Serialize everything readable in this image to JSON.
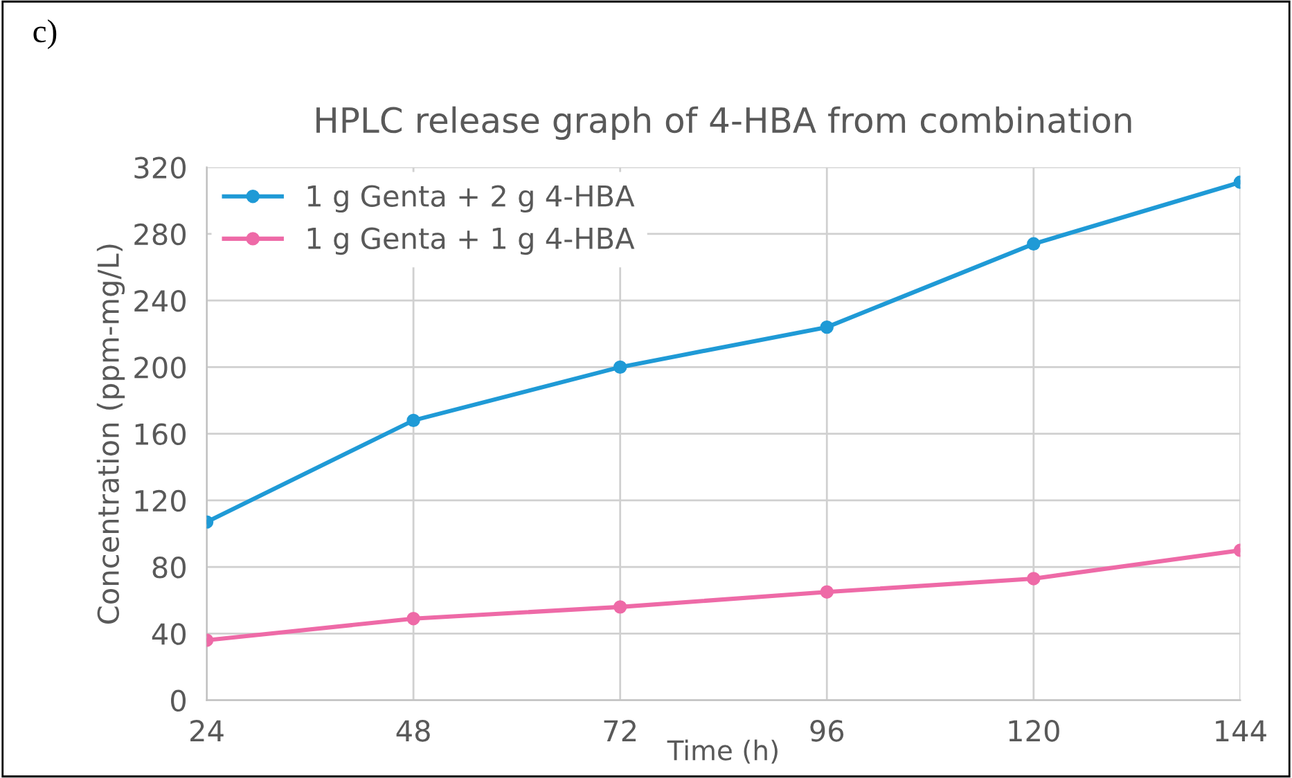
{
  "chart_data": {
    "type": "line",
    "title": "HPLC release graph of 4-HBA from combination",
    "xlabel": "Time (h)",
    "ylabel": "Concentration (ppm-mg/L)",
    "annotations": [
      "c)"
    ],
    "x": [
      24,
      48,
      72,
      96,
      120,
      144
    ],
    "series": [
      {
        "name": "1 g Genta + 2 g 4-HBA",
        "color": "#1f9ad6",
        "values": [
          107,
          168,
          200,
          224,
          274,
          311
        ]
      },
      {
        "name": "1 g Genta + 1 g 4-HBA",
        "color": "#ee6aa7",
        "values": [
          36,
          49,
          56,
          65,
          73,
          90
        ]
      }
    ],
    "xlim": [
      24,
      144
    ],
    "xticks": [
      24,
      48,
      72,
      96,
      120,
      144
    ],
    "ylim": [
      0,
      320
    ],
    "yticks": [
      0,
      40,
      80,
      120,
      160,
      200,
      240,
      280,
      320
    ],
    "grid": true,
    "legend": "top left",
    "marker": "circle",
    "line_style": "solid"
  }
}
